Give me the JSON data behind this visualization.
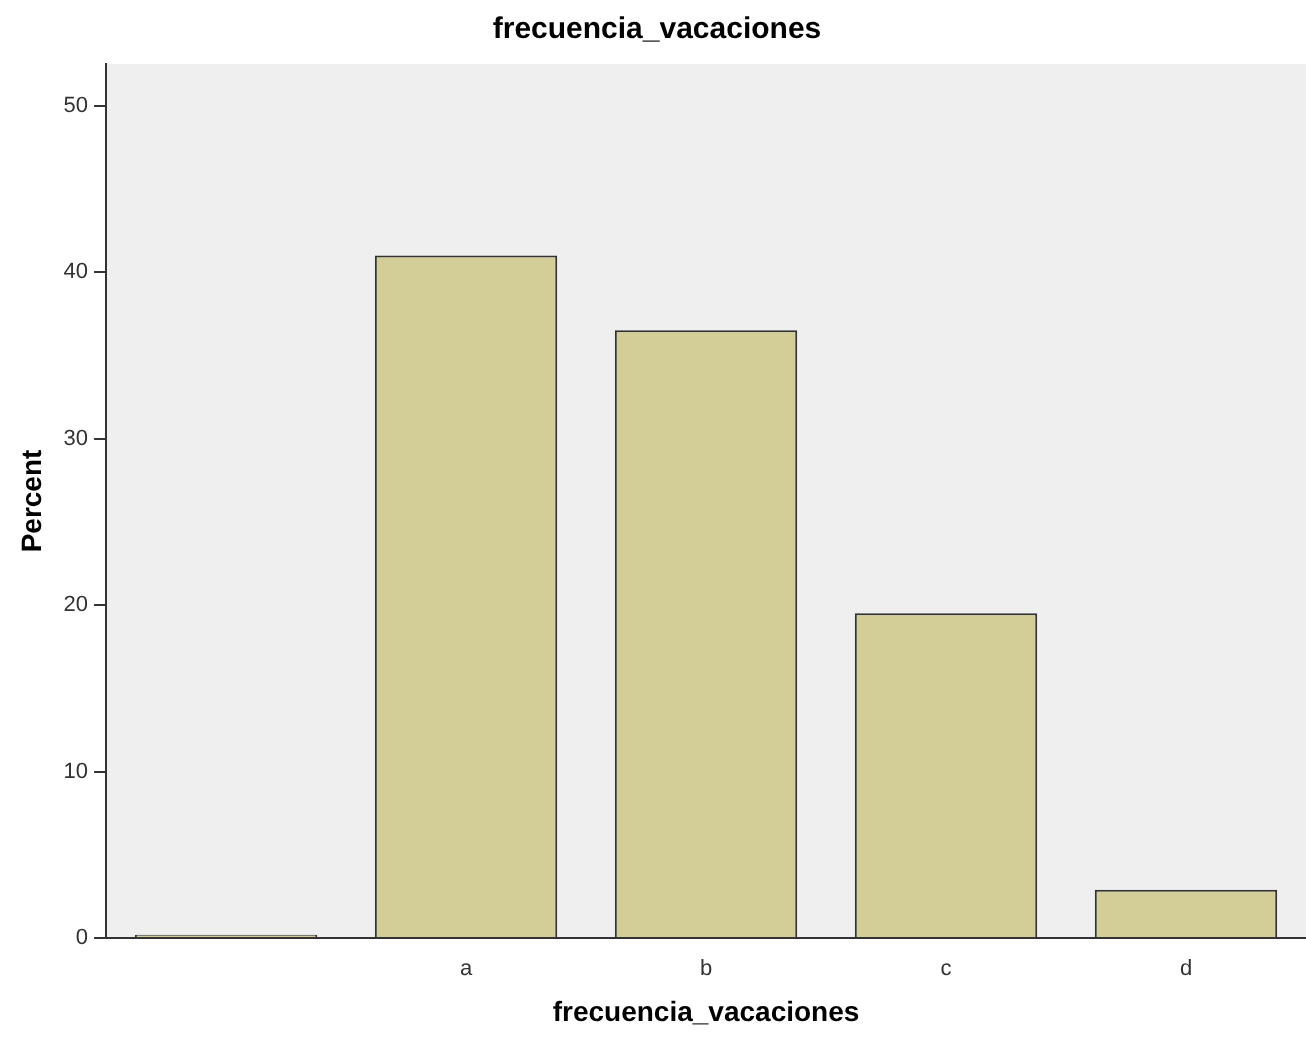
{
  "chart_data": {
    "type": "bar",
    "title": "frecuencia_vacaciones",
    "xlabel": "frecuencia_vacaciones",
    "ylabel": "Percent",
    "categories": [
      null,
      "a",
      "b",
      "c",
      "d"
    ],
    "values": [
      0.2,
      41.0,
      36.5,
      19.5,
      2.9
    ],
    "color": "#d3ce97",
    "ylim": [
      0,
      52.5
    ],
    "yticks": [
      0,
      10,
      20,
      30,
      40,
      50
    ],
    "grid": false,
    "legend": false
  }
}
